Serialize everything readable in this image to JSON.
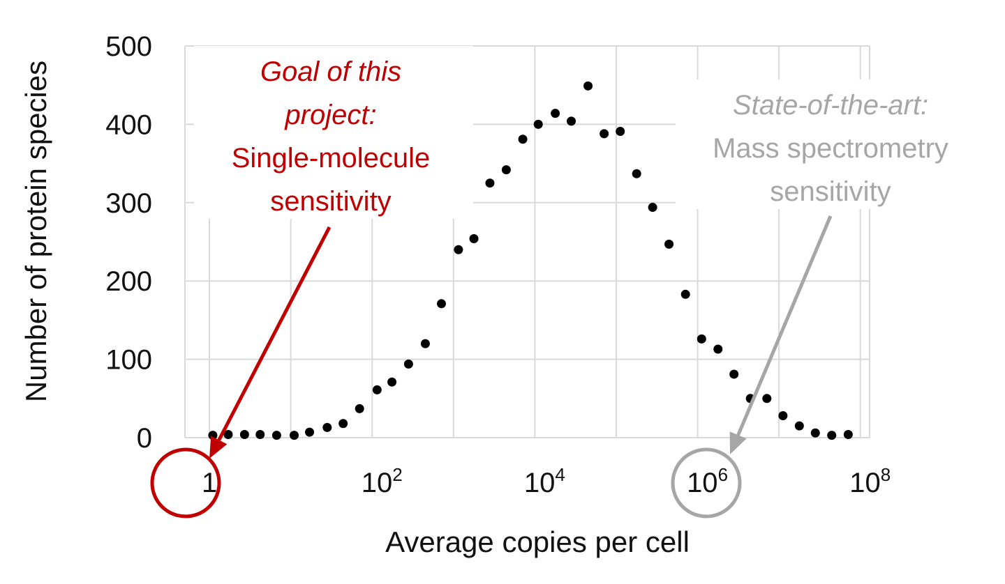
{
  "chart_data": {
    "type": "scatter",
    "x_scale": "log10",
    "xlabel": "Average copies per cell",
    "ylabel": "Number of protein species",
    "xlim": [
      0.5,
      130000000
    ],
    "ylim": [
      0,
      500
    ],
    "grid": true,
    "y_ticks": [
      "0",
      "100",
      "200",
      "300",
      "400",
      "500"
    ],
    "x_ticks": [
      {
        "value": 1,
        "base": "1",
        "exp": ""
      },
      {
        "value": 100,
        "base": "10",
        "exp": "2"
      },
      {
        "value": 10000,
        "base": "10",
        "exp": "4"
      },
      {
        "value": 1000000,
        "base": "10",
        "exp": "6"
      },
      {
        "value": 100000000,
        "base": "10",
        "exp": "8"
      }
    ],
    "series": [
      {
        "color": "#000000",
        "points": [
          [
            1.1,
            3
          ],
          [
            1.7,
            4
          ],
          [
            2.7,
            4
          ],
          [
            4.2,
            4
          ],
          [
            6.7,
            3
          ],
          [
            11,
            3
          ],
          [
            17,
            7
          ],
          [
            28,
            13
          ],
          [
            44,
            18
          ],
          [
            70,
            37
          ],
          [
            115,
            61
          ],
          [
            175,
            71
          ],
          [
            280,
            94
          ],
          [
            450,
            120
          ],
          [
            710,
            171
          ],
          [
            1150,
            240
          ],
          [
            1780,
            254
          ],
          [
            2800,
            325
          ],
          [
            4450,
            342
          ],
          [
            7100,
            381
          ],
          [
            11000,
            400
          ],
          [
            17800,
            414
          ],
          [
            28000,
            404
          ],
          [
            45000,
            449
          ],
          [
            71000,
            388
          ],
          [
            112000,
            391
          ],
          [
            178000,
            337
          ],
          [
            280000,
            294
          ],
          [
            445000,
            247
          ],
          [
            710000,
            183
          ],
          [
            1120000,
            126
          ],
          [
            1780000,
            113
          ],
          [
            2800000,
            81
          ],
          [
            4450000,
            50
          ],
          [
            7100000,
            50
          ],
          [
            11200000,
            28
          ],
          [
            17800000,
            15
          ],
          [
            28000000,
            6
          ],
          [
            44500000,
            3
          ],
          [
            71000000,
            4
          ]
        ]
      }
    ],
    "annotations": {
      "goal": {
        "color": "#c00000",
        "line1": "Goal of this",
        "line2": "project:",
        "line3": "Single-molecule",
        "line4": "sensitivity"
      },
      "state": {
        "color": "#a6a6a6",
        "line1": "State-of-the-art:",
        "line2": "Mass spectrometry",
        "line3": "sensitivity"
      }
    }
  }
}
